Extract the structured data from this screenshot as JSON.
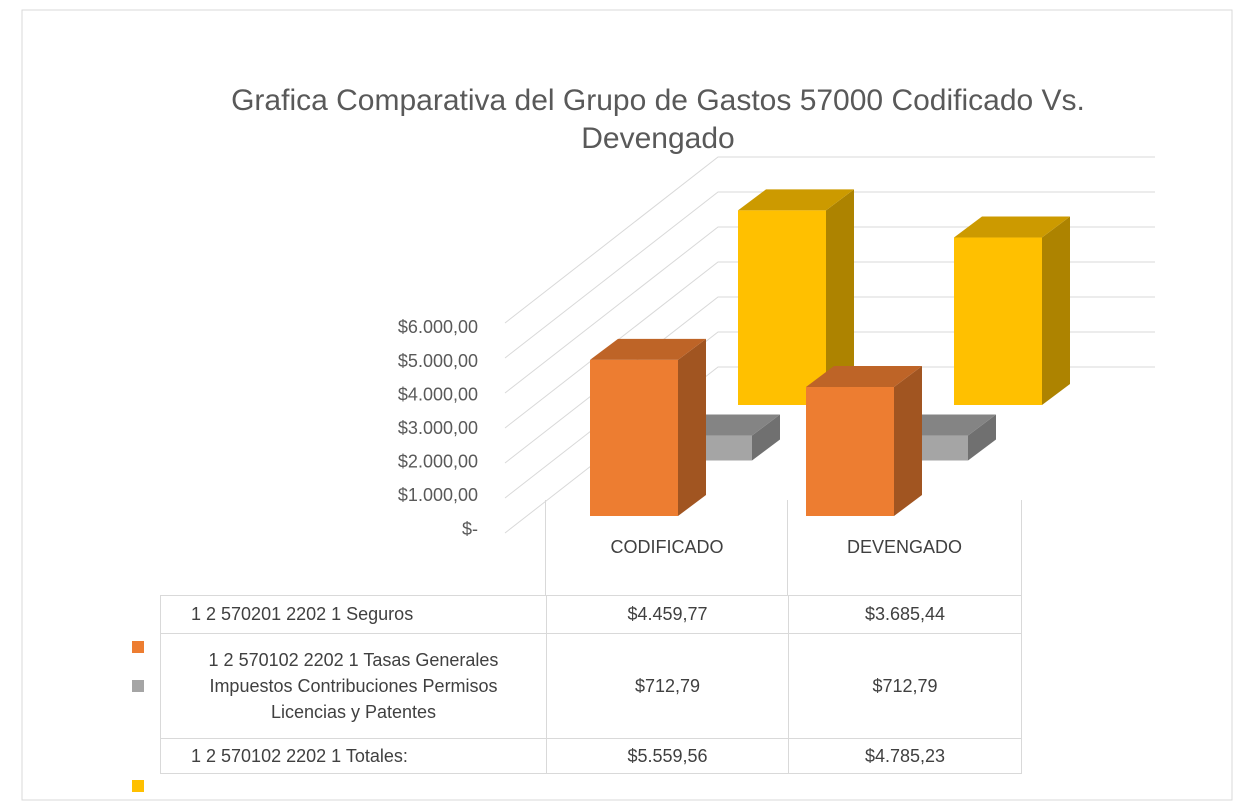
{
  "chart_data": {
    "type": "bar",
    "title": "Grafica Comparativa del Grupo de Gastos 57000 Codificado Vs. Devengado",
    "categories": [
      "CODIFICADO",
      "DEVENGADO"
    ],
    "series": [
      {
        "name": "1 2 570201 2202 1 Seguros",
        "color": "#ED7D31",
        "values": [
          4459.77,
          3685.44
        ],
        "value_labels": [
          "$4.459,77",
          "$3.685,44"
        ]
      },
      {
        "name": "1 2 570102 2202 1 Tasas Generales Impuestos Contribuciones Permisos Licencias y Patentes",
        "color": "#A5A5A5",
        "values": [
          712.79,
          712.79
        ],
        "value_labels": [
          "$712,79",
          "$712,79"
        ]
      },
      {
        "name": "1 2 570102 2202 1 Totales:",
        "color": "#FFC000",
        "values": [
          5559.56,
          4785.23
        ],
        "value_labels": [
          "$5.559,56",
          "$4.785,23"
        ]
      }
    ],
    "ylim": [
      0,
      6000
    ],
    "yticks": [
      {
        "value": 0,
        "label": "$-"
      },
      {
        "value": 1000,
        "label": "$1.000,00"
      },
      {
        "value": 2000,
        "label": "$2.000,00"
      },
      {
        "value": 3000,
        "label": "$3.000,00"
      },
      {
        "value": 4000,
        "label": "$4.000,00"
      },
      {
        "value": 5000,
        "label": "$5.000,00"
      },
      {
        "value": 6000,
        "label": "$6.000,00"
      }
    ],
    "grid": true
  }
}
